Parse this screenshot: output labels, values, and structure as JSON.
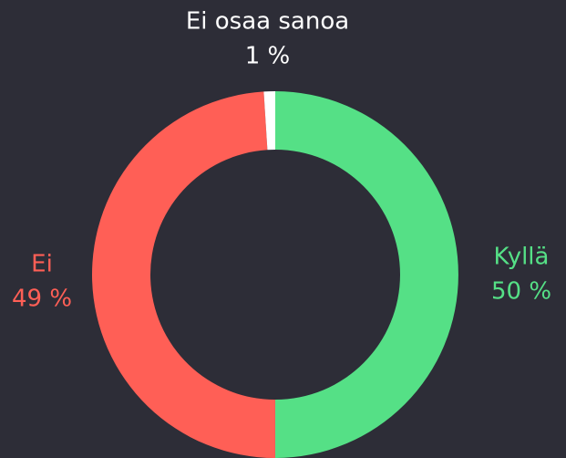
{
  "chart_data": {
    "type": "donut",
    "categories": [
      "Kyllä",
      "Ei",
      "Ei osaa sanoa"
    ],
    "values": [
      50,
      49,
      1
    ],
    "value_labels": [
      "50 %",
      "49 %",
      "1 %"
    ],
    "colors": [
      "#55e086",
      "#ff5f56",
      "#ffffff"
    ]
  }
}
